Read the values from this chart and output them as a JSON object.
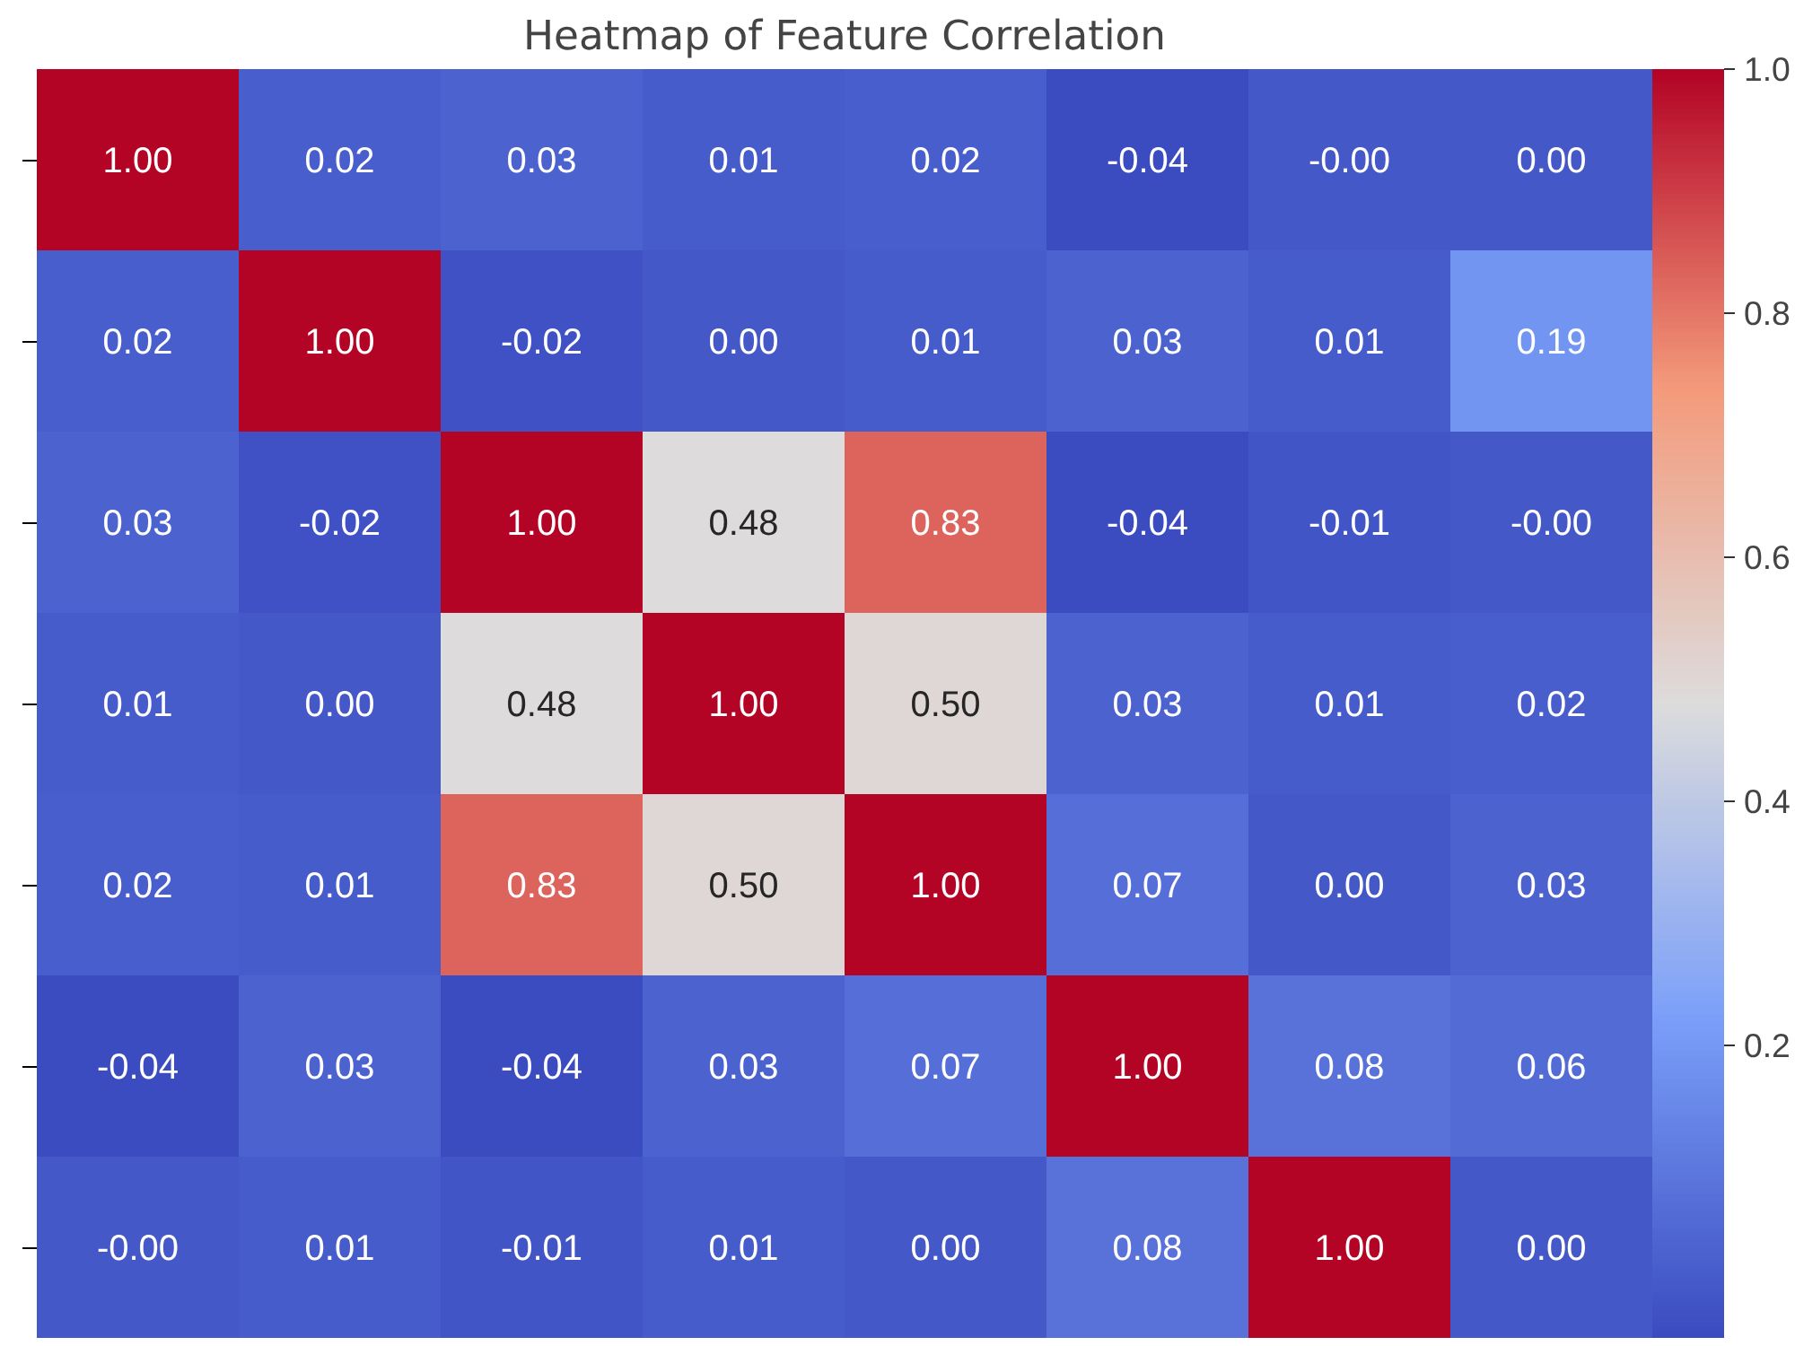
{
  "chart_data": {
    "type": "heatmap",
    "title": "Heatmap of Feature Correlation",
    "categories": [
      null,
      null,
      null,
      null,
      null,
      null,
      null,
      null
    ],
    "y_categories": [
      null,
      null,
      null,
      null,
      null,
      null,
      null
    ],
    "cells": [
      [
        1.0,
        0.02,
        0.03,
        0.01,
        0.02,
        -0.04,
        0.0,
        0.0
      ],
      [
        0.02,
        1.0,
        -0.02,
        0.0,
        0.01,
        0.03,
        0.01,
        0.19
      ],
      [
        0.03,
        -0.02,
        1.0,
        0.48,
        0.83,
        -0.04,
        -0.01,
        0.0
      ],
      [
        0.01,
        0.0,
        0.48,
        1.0,
        0.5,
        0.03,
        0.01,
        0.02
      ],
      [
        0.02,
        0.01,
        0.83,
        0.5,
        1.0,
        0.07,
        0.0,
        0.03
      ],
      [
        -0.04,
        0.03,
        -0.04,
        0.03,
        0.07,
        1.0,
        0.08,
        0.06
      ],
      [
        0.0,
        0.01,
        -0.01,
        0.01,
        0.0,
        0.08,
        1.0,
        0.0
      ]
    ],
    "cell_labels": [
      [
        "1.00",
        "0.02",
        "0.03",
        "0.01",
        "0.02",
        "-0.04",
        "-0.00",
        "0.00"
      ],
      [
        "0.02",
        "1.00",
        "-0.02",
        "0.00",
        "0.01",
        "0.03",
        "0.01",
        "0.19"
      ],
      [
        "0.03",
        "-0.02",
        "1.00",
        "0.48",
        "0.83",
        "-0.04",
        "-0.01",
        "-0.00"
      ],
      [
        "0.01",
        "0.00",
        "0.48",
        "1.00",
        "0.50",
        "0.03",
        "0.01",
        "0.02"
      ],
      [
        "0.02",
        "0.01",
        "0.83",
        "0.50",
        "1.00",
        "0.07",
        "0.00",
        "0.03"
      ],
      [
        "-0.04",
        "0.03",
        "-0.04",
        "0.03",
        "0.07",
        "1.00",
        "0.08",
        "0.06"
      ],
      [
        "-0.00",
        "0.01",
        "-0.01",
        "0.01",
        "0.00",
        "0.08",
        "1.00",
        "0.00"
      ]
    ],
    "clim": [
      -0.04,
      1.0
    ],
    "cticks": [
      0.2,
      0.4,
      0.6,
      0.8,
      {
        "value": 1,
        "label": "1.0"
      }
    ],
    "tick_labels": false
  }
}
